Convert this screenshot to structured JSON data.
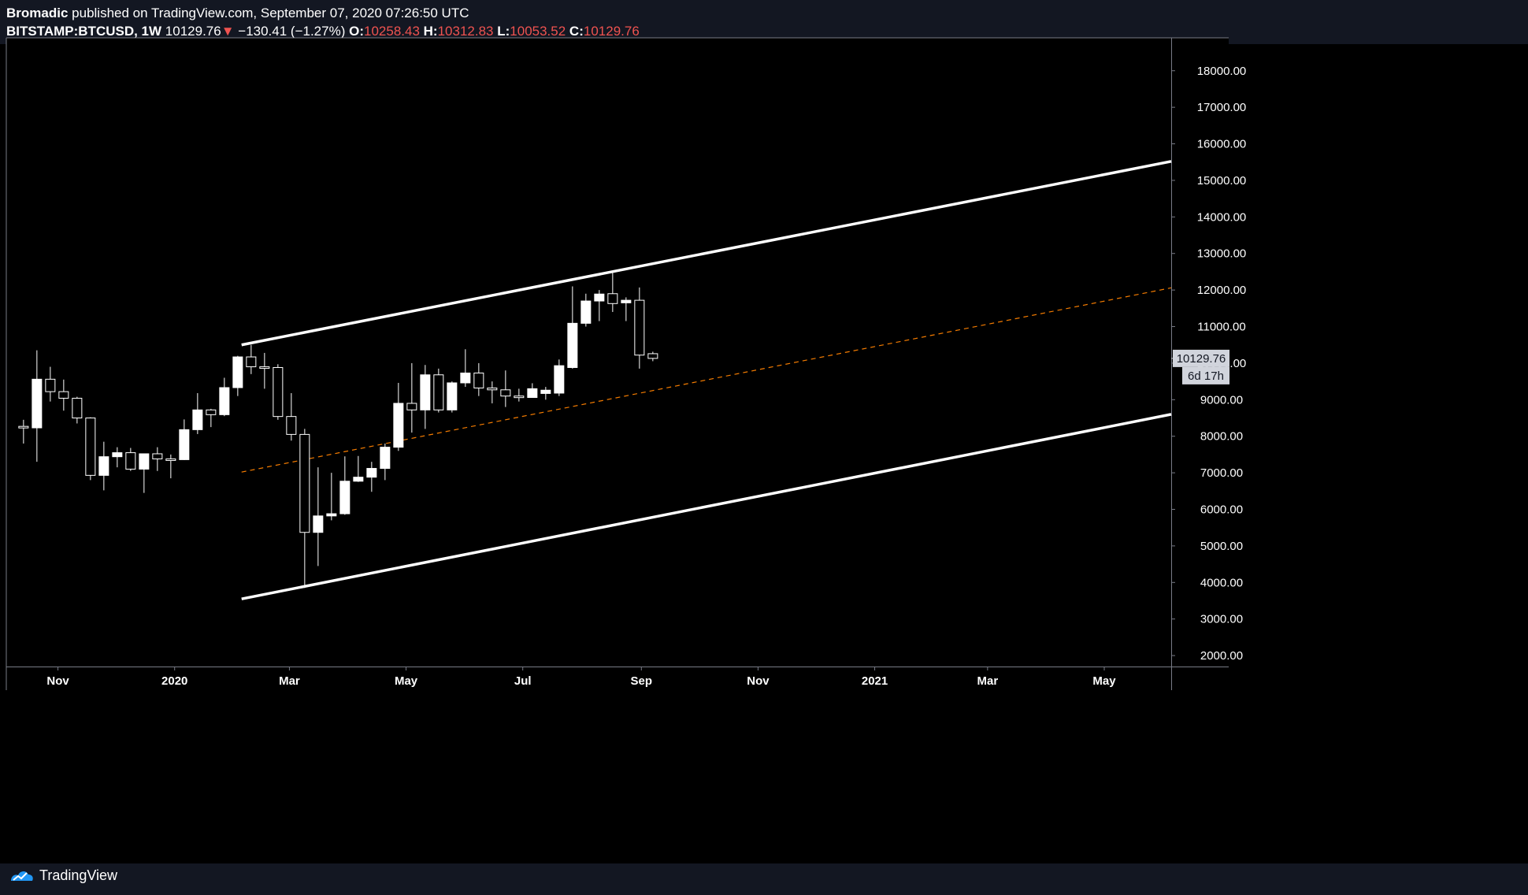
{
  "header": {
    "author": "Bromadic",
    "published_text": "published on TradingView.com, September 07, 2020 07:26:50 UTC",
    "symbol": "BITSTAMP:BTCUSD, 1W",
    "last": "10129.76",
    "change_arrow": "▼",
    "change": "−130.41 (−1.27%)",
    "o_label": "O:",
    "o_value": "10258.43",
    "h_label": "H:",
    "h_value": "10312.83",
    "l_label": "L:",
    "l_value": "10053.52",
    "c_label": "C:",
    "c_value": "10129.76"
  },
  "footer": {
    "brand": "TradingView"
  },
  "colors": {
    "background": "#000000",
    "panel": "#131722",
    "candle": "#ffffff",
    "midline": "#f57c00",
    "price_tag": "#d1d4dc",
    "negative": "#ef5350"
  },
  "chart_data": {
    "type": "candlestick",
    "symbol": "BITSTAMP:BTCUSD",
    "interval": "1W",
    "y_axis": {
      "side": "right",
      "min": 1700,
      "max": 18900,
      "ticks": [
        "18000.00",
        "17000.00",
        "16000.00",
        "15000.00",
        "14000.00",
        "13000.00",
        "12000.00",
        "11000.00",
        "10000.00",
        "9000.00",
        "8000.00",
        "7000.00",
        "6000.00",
        "5000.00",
        "4000.00",
        "3000.00",
        "2000.00"
      ]
    },
    "x_axis": {
      "labels": [
        {
          "text": "Nov",
          "date": "2019-11-01"
        },
        {
          "text": "2020",
          "date": "2020-01-01"
        },
        {
          "text": "Mar",
          "date": "2020-03-01"
        },
        {
          "text": "May",
          "date": "2020-05-01"
        },
        {
          "text": "Jul",
          "date": "2020-07-01"
        },
        {
          "text": "Sep",
          "date": "2020-09-01"
        },
        {
          "text": "Nov",
          "date": "2020-11-01"
        },
        {
          "text": "2021",
          "date": "2021-01-01"
        },
        {
          "text": "Mar",
          "date": "2021-03-01"
        },
        {
          "text": "May",
          "date": "2021-05-01"
        }
      ],
      "start": "2019-10-05",
      "end": "2021-06-05"
    },
    "candles": [
      {
        "d": "2019-10-14",
        "o": 8270,
        "h": 8450,
        "l": 7800,
        "c": 8240
      },
      {
        "d": "2019-10-21",
        "o": 8230,
        "h": 10350,
        "l": 7300,
        "c": 9560
      },
      {
        "d": "2019-10-28",
        "o": 9560,
        "h": 9900,
        "l": 8950,
        "c": 9220
      },
      {
        "d": "2019-11-04",
        "o": 9220,
        "h": 9550,
        "l": 8700,
        "c": 9040
      },
      {
        "d": "2019-11-11",
        "o": 9040,
        "h": 9080,
        "l": 8350,
        "c": 8500
      },
      {
        "d": "2019-11-18",
        "o": 8500,
        "h": 8520,
        "l": 6800,
        "c": 6930
      },
      {
        "d": "2019-11-25",
        "o": 6930,
        "h": 7850,
        "l": 6520,
        "c": 7440
      },
      {
        "d": "2019-12-02",
        "o": 7440,
        "h": 7700,
        "l": 7150,
        "c": 7550
      },
      {
        "d": "2019-12-09",
        "o": 7550,
        "h": 7680,
        "l": 7050,
        "c": 7100
      },
      {
        "d": "2019-12-16",
        "o": 7100,
        "h": 7450,
        "l": 6450,
        "c": 7520
      },
      {
        "d": "2019-12-23",
        "o": 7520,
        "h": 7700,
        "l": 7050,
        "c": 7380
      },
      {
        "d": "2019-12-30",
        "o": 7380,
        "h": 7500,
        "l": 6850,
        "c": 7360
      },
      {
        "d": "2020-01-06",
        "o": 7360,
        "h": 8460,
        "l": 7350,
        "c": 8180
      },
      {
        "d": "2020-01-13",
        "o": 8180,
        "h": 9180,
        "l": 8060,
        "c": 8720
      },
      {
        "d": "2020-01-20",
        "o": 8720,
        "h": 8750,
        "l": 8250,
        "c": 8590
      },
      {
        "d": "2020-01-27",
        "o": 8590,
        "h": 9600,
        "l": 8550,
        "c": 9330
      },
      {
        "d": "2020-02-03",
        "o": 9330,
        "h": 10200,
        "l": 9100,
        "c": 10170
      },
      {
        "d": "2020-02-10",
        "o": 10170,
        "h": 10500,
        "l": 9700,
        "c": 9900
      },
      {
        "d": "2020-02-17",
        "o": 9900,
        "h": 10280,
        "l": 9300,
        "c": 9880
      },
      {
        "d": "2020-02-24",
        "o": 9880,
        "h": 9970,
        "l": 8450,
        "c": 8540
      },
      {
        "d": "2020-03-02",
        "o": 8540,
        "h": 9180,
        "l": 7880,
        "c": 8050
      },
      {
        "d": "2020-03-09",
        "o": 8050,
        "h": 8200,
        "l": 3850,
        "c": 5370
      },
      {
        "d": "2020-03-16",
        "o": 5370,
        "h": 7150,
        "l": 4450,
        "c": 5820
      },
      {
        "d": "2020-03-23",
        "o": 5820,
        "h": 7000,
        "l": 5700,
        "c": 5880
      },
      {
        "d": "2020-03-30",
        "o": 5880,
        "h": 7450,
        "l": 5850,
        "c": 6770
      },
      {
        "d": "2020-04-06",
        "o": 6770,
        "h": 7460,
        "l": 6750,
        "c": 6880
      },
      {
        "d": "2020-04-13",
        "o": 6880,
        "h": 7300,
        "l": 6480,
        "c": 7120
      },
      {
        "d": "2020-04-20",
        "o": 7120,
        "h": 7800,
        "l": 6800,
        "c": 7700
      },
      {
        "d": "2020-04-27",
        "o": 7700,
        "h": 9460,
        "l": 7600,
        "c": 8900
      },
      {
        "d": "2020-05-04",
        "o": 8900,
        "h": 10000,
        "l": 8100,
        "c": 8720
      },
      {
        "d": "2020-05-11",
        "o": 8720,
        "h": 9950,
        "l": 8200,
        "c": 9680
      },
      {
        "d": "2020-05-18",
        "o": 9680,
        "h": 9850,
        "l": 8650,
        "c": 8720
      },
      {
        "d": "2020-05-25",
        "o": 8720,
        "h": 9500,
        "l": 8650,
        "c": 9460
      },
      {
        "d": "2020-06-01",
        "o": 9460,
        "h": 10380,
        "l": 9350,
        "c": 9730
      },
      {
        "d": "2020-06-08",
        "o": 9730,
        "h": 10000,
        "l": 9100,
        "c": 9320
      },
      {
        "d": "2020-06-15",
        "o": 9320,
        "h": 9500,
        "l": 8900,
        "c": 9270
      },
      {
        "d": "2020-06-22",
        "o": 9270,
        "h": 9800,
        "l": 8800,
        "c": 9100
      },
      {
        "d": "2020-06-29",
        "o": 9100,
        "h": 9300,
        "l": 8950,
        "c": 9060
      },
      {
        "d": "2020-07-06",
        "o": 9060,
        "h": 9450,
        "l": 9050,
        "c": 9300
      },
      {
        "d": "2020-07-13",
        "o": 9170,
        "h": 9350,
        "l": 9000,
        "c": 9260
      },
      {
        "d": "2020-07-20",
        "o": 9180,
        "h": 10100,
        "l": 9100,
        "c": 9930
      },
      {
        "d": "2020-07-27",
        "o": 9880,
        "h": 12100,
        "l": 9850,
        "c": 11090
      },
      {
        "d": "2020-08-03",
        "o": 11090,
        "h": 11900,
        "l": 11000,
        "c": 11700
      },
      {
        "d": "2020-08-10",
        "o": 11700,
        "h": 12000,
        "l": 11150,
        "c": 11890
      },
      {
        "d": "2020-08-17",
        "o": 11900,
        "h": 12470,
        "l": 11400,
        "c": 11630
      },
      {
        "d": "2020-08-24",
        "o": 11650,
        "h": 11800,
        "l": 11150,
        "c": 11720
      },
      {
        "d": "2020-08-31",
        "o": 11720,
        "h": 12070,
        "l": 9850,
        "c": 10220
      },
      {
        "d": "2020-09-07",
        "o": 10258.43,
        "h": 10312.83,
        "l": 10053.52,
        "c": 10129.76
      }
    ],
    "trendlines": [
      {
        "name": "channel-upper",
        "style": "solid",
        "color": "#ffffff",
        "p1": {
          "d": "2020-02-05",
          "v": 10500
        },
        "p2": {
          "d": "2021-06-05",
          "v": 15520
        }
      },
      {
        "name": "channel-lower",
        "style": "solid",
        "color": "#ffffff",
        "p1": {
          "d": "2020-02-05",
          "v": 3550
        },
        "p2": {
          "d": "2021-06-05",
          "v": 8600
        }
      },
      {
        "name": "channel-mid",
        "style": "dashed",
        "color": "#f57c00",
        "p1": {
          "d": "2020-02-05",
          "v": 7020
        },
        "p2": {
          "d": "2021-06-05",
          "v": 12060
        }
      }
    ],
    "last_price": {
      "value": "10129.76",
      "countdown": "6d 17h"
    }
  }
}
